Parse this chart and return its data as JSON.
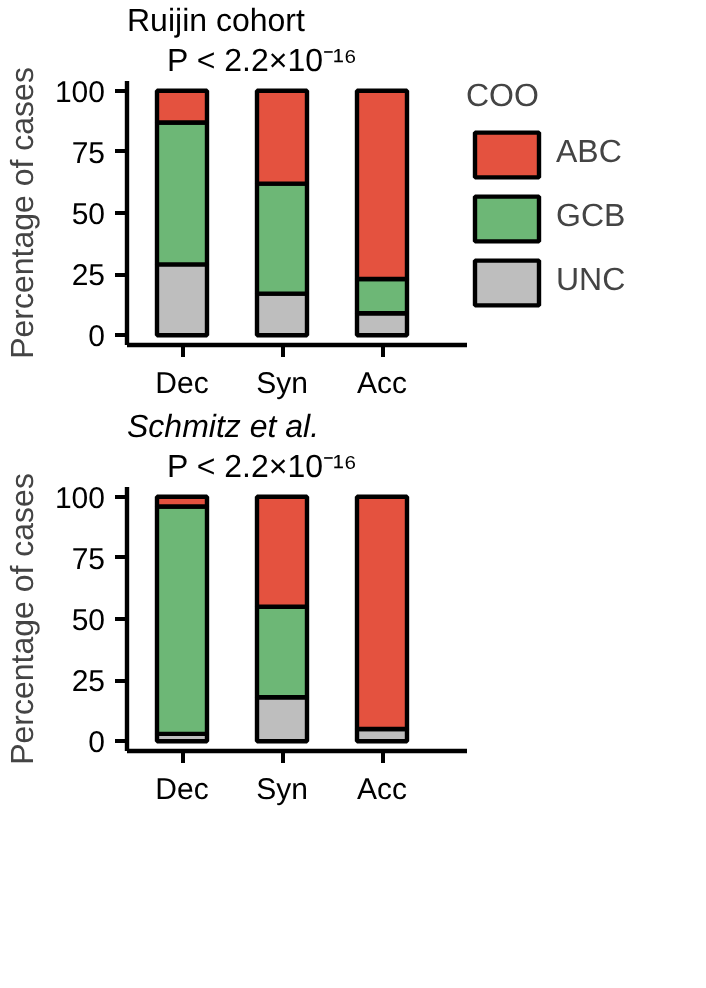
{
  "chart_data": [
    {
      "type": "bar",
      "stacked": true,
      "title": "Ruijin cohort",
      "subtitle": "P < 2.2×10⁻¹⁶",
      "ylabel": "Percentage of cases",
      "legend_title": "COO",
      "legend": "right",
      "grid": false,
      "categories": [
        "Dec",
        "Syn",
        "Acc"
      ],
      "ylim": [
        -4,
        104
      ],
      "yticks": [
        0,
        25,
        50,
        75,
        100
      ],
      "series": [
        {
          "name": "UNC",
          "color": "#bebebe",
          "values": [
            29,
            17,
            9
          ]
        },
        {
          "name": "GCB",
          "color": "#6db776",
          "values": [
            58,
            45,
            14
          ]
        },
        {
          "name": "ABC",
          "color": "#e4523f",
          "values": [
            13,
            38,
            77
          ]
        }
      ]
    },
    {
      "type": "bar",
      "stacked": true,
      "title": "Schmitz et al.",
      "subtitle": "P < 2.2×10⁻¹⁶",
      "ylabel": "Percentage of cases",
      "legend": false,
      "grid": false,
      "categories": [
        "Dec",
        "Syn",
        "Acc"
      ],
      "ylim": [
        -4,
        104
      ],
      "yticks": [
        0,
        25,
        50,
        75,
        100
      ],
      "series": [
        {
          "color": "#bebebe",
          "values": [
            3,
            18,
            5
          ]
        },
        {
          "color": "#6db776",
          "values": [
            93,
            37,
            0
          ]
        },
        {
          "color": "#e4523f",
          "values": [
            4,
            45,
            95
          ]
        }
      ]
    }
  ]
}
